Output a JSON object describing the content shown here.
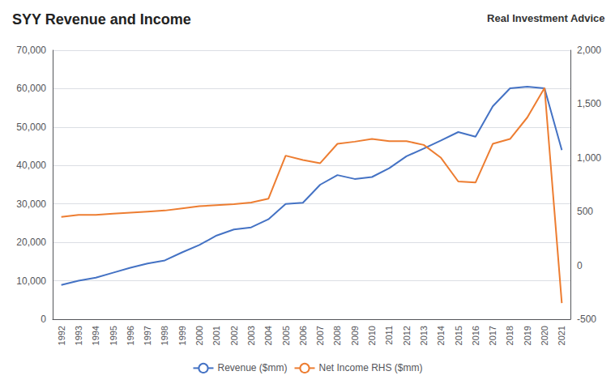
{
  "chart_data": {
    "type": "line",
    "title": "SYY Revenue and Income",
    "annotations": [
      "Real Investment Advice"
    ],
    "categories": [
      "1992",
      "1993",
      "1994",
      "1995",
      "1996",
      "1997",
      "1998",
      "1999",
      "2000",
      "2001",
      "2002",
      "2003",
      "2004",
      "2005",
      "2006",
      "2007",
      "2008",
      "2009",
      "2010",
      "2011",
      "2012",
      "2013",
      "2014",
      "2015",
      "2016",
      "2017",
      "2018",
      "2019",
      "2020",
      "2021"
    ],
    "series": [
      {
        "name": "Revenue ($mm)",
        "color": "#4472C4",
        "values": [
          8900,
          10000,
          10800,
          12100,
          13400,
          14500,
          15300,
          17400,
          19303,
          21784,
          23350,
          23900,
          26000,
          30000,
          30300,
          35000,
          37500,
          36500,
          37000,
          39300,
          42400,
          44400,
          46500,
          48700,
          47500,
          55400,
          60100,
          60500,
          60100,
          44000
        ]
      },
      {
        "name": "Net Income RHS ($mm)",
        "color": "#ED7D31",
        "axis": "y2",
        "values": [
          450,
          470,
          470,
          480,
          490,
          500,
          510,
          530,
          550,
          560,
          570,
          585,
          620,
          1020,
          980,
          950,
          1130,
          1150,
          1175,
          1155,
          1155,
          1120,
          1000,
          780,
          770,
          1130,
          1175,
          1375,
          1650,
          -350
        ]
      }
    ],
    "ylim": [
      0,
      70000
    ],
    "yticks": [
      0,
      {
        "value": 10000,
        "label": "10,000"
      },
      {
        "value": 20000,
        "label": "20,000"
      },
      {
        "value": 30000,
        "label": "30,000"
      },
      {
        "value": 40000,
        "label": "40,000"
      },
      {
        "value": 50000,
        "label": "50,000"
      },
      {
        "value": 60000,
        "label": "60,000"
      },
      {
        "value": 70000,
        "label": "70,000"
      }
    ],
    "y2lim": [
      -500,
      2000
    ],
    "y2ticks": [
      -500,
      0,
      500,
      {
        "value": 1000,
        "label": "1,000"
      },
      {
        "value": 1500,
        "label": "1,500"
      },
      {
        "value": 2000,
        "label": "2,000"
      }
    ],
    "grid": true,
    "legend": "bottom"
  }
}
